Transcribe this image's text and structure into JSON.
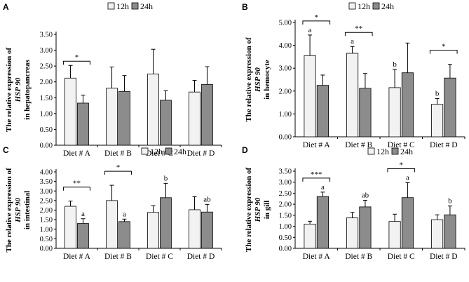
{
  "legend": {
    "series_a": "12h",
    "series_b": "24h"
  },
  "colors": {
    "series_a": "#f2f2f2",
    "series_b": "#8c8c8c",
    "axis": "#000000"
  },
  "chart_data": [
    {
      "panel": "A",
      "type": "bar",
      "ylabel_lines": [
        "The relative expression of",
        "HSP 90",
        "in hepatopancreas"
      ],
      "categories": [
        "Diet # A",
        "Diet # B",
        "Diet # C",
        "Diet # D"
      ],
      "yticks": [
        "0.00",
        "0.50",
        "1.00",
        "1.50",
        "2.00",
        "2.50",
        "3.00",
        "3.50"
      ],
      "ylim": [
        0,
        3.5
      ],
      "series": [
        {
          "name": "12h",
          "values": [
            2.12,
            1.8,
            2.25,
            1.68
          ],
          "errors": [
            0.4,
            0.67,
            0.78,
            0.37
          ]
        },
        {
          "name": "24h",
          "values": [
            1.33,
            1.7,
            1.42,
            1.92
          ],
          "errors": [
            0.25,
            0.5,
            0.3,
            0.56
          ]
        }
      ],
      "letters_12h": [
        "",
        "",
        "",
        ""
      ],
      "letters_24h": [
        "",
        "",
        "",
        ""
      ],
      "brackets": [
        {
          "category": 0,
          "label": "*"
        }
      ]
    },
    {
      "panel": "B",
      "type": "bar",
      "ylabel_lines": [
        "The relative expression of",
        "HSP 90",
        "in hemocyte"
      ],
      "categories": [
        "Diet # A",
        "Diet # B",
        "Diet # C",
        "Diet # D"
      ],
      "yticks": [
        "0.00",
        "1.00",
        "2.00",
        "3.00",
        "4.00",
        "5.00"
      ],
      "ylim": [
        0,
        5
      ],
      "series": [
        {
          "name": "12h",
          "values": [
            3.55,
            3.65,
            2.15,
            1.42
          ],
          "errors": [
            0.9,
            0.3,
            0.8,
            0.25
          ]
        },
        {
          "name": "24h",
          "values": [
            2.25,
            2.12,
            2.8,
            2.57
          ],
          "errors": [
            0.45,
            0.65,
            1.3,
            0.6
          ]
        }
      ],
      "letters_12h": [
        "a",
        "a",
        "b",
        "b"
      ],
      "letters_24h": [
        "",
        "",
        "",
        ""
      ],
      "brackets": [
        {
          "category": 0,
          "label": "*"
        },
        {
          "category": 1,
          "label": "**"
        },
        {
          "category": 3,
          "label": "*"
        }
      ]
    },
    {
      "panel": "C",
      "type": "bar",
      "ylabel_lines": [
        "The relative expression of",
        "HSP 90",
        "in intestinal"
      ],
      "categories": [
        "Diet # A",
        "Diet # B",
        "Diet # C",
        "Diet # D"
      ],
      "yticks": [
        "0.00",
        "0.50",
        "1.00",
        "1.50",
        "2.00",
        "2.50",
        "3.00",
        "3.50",
        "4.00"
      ],
      "ylim": [
        0,
        4
      ],
      "series": [
        {
          "name": "12h",
          "values": [
            2.2,
            2.5,
            1.88,
            2.02
          ],
          "errors": [
            0.27,
            0.8,
            0.35,
            0.68
          ]
        },
        {
          "name": "24h",
          "values": [
            1.3,
            1.4,
            2.65,
            1.9
          ],
          "errors": [
            0.25,
            0.13,
            0.75,
            0.4
          ]
        }
      ],
      "letters_12h": [
        "",
        "",
        "",
        ""
      ],
      "letters_24h": [
        "a",
        "a",
        "b",
        "ab"
      ],
      "brackets": [
        {
          "category": 0,
          "label": "**"
        },
        {
          "category": 1,
          "label": "*"
        }
      ]
    },
    {
      "panel": "D",
      "type": "bar",
      "ylabel_lines": [
        "The relative expression of",
        "HSP 90",
        "in gill"
      ],
      "categories": [
        "Diet # A",
        "Diet # B",
        "Diet # C",
        "Diet # D"
      ],
      "yticks": [
        "0.00",
        "0.50",
        "1.00",
        "1.50",
        "2.00",
        "2.50",
        "3.00",
        "3.50"
      ],
      "ylim": [
        0,
        3.5
      ],
      "series": [
        {
          "name": "12h",
          "values": [
            1.1,
            1.38,
            1.22,
            1.3
          ],
          "errors": [
            0.13,
            0.25,
            0.33,
            0.22
          ]
        },
        {
          "name": "24h",
          "values": [
            2.35,
            1.88,
            2.3,
            1.52
          ],
          "errors": [
            0.2,
            0.3,
            0.68,
            0.4
          ]
        }
      ],
      "letters_12h": [
        "",
        "",
        "",
        ""
      ],
      "letters_24h": [
        "a",
        "ab",
        "a",
        "b"
      ],
      "brackets": [
        {
          "category": 0,
          "label": "***"
        },
        {
          "category": 2,
          "label": "*"
        }
      ]
    }
  ]
}
